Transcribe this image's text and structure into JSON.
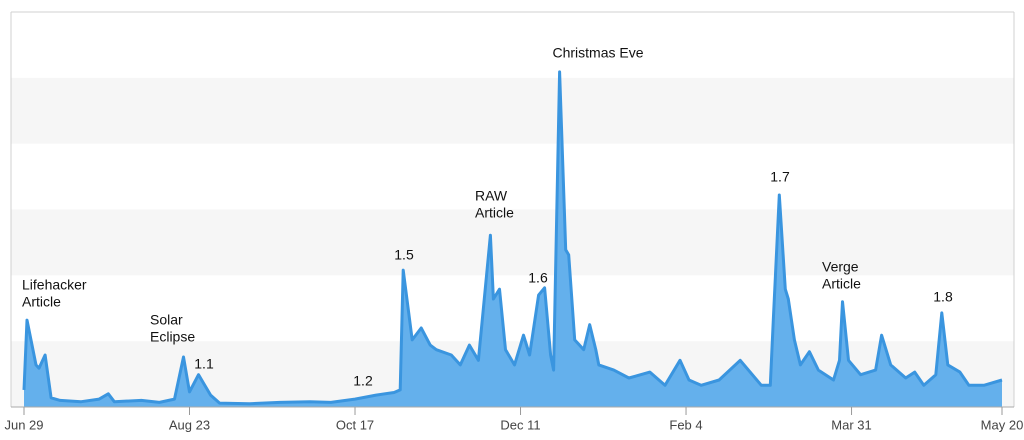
{
  "chart_data": {
    "type": "area",
    "color": "#64b0ec",
    "line_color": "#3a95df",
    "x": [
      0,
      1,
      4,
      5,
      7,
      9,
      12,
      19,
      25,
      28,
      30,
      39,
      45,
      50,
      53,
      55,
      58,
      62,
      65,
      75,
      85,
      95,
      102,
      110,
      117,
      123,
      125,
      126,
      129,
      132,
      135,
      137,
      142,
      145,
      148,
      151,
      155,
      156,
      158,
      160,
      163,
      166,
      168,
      171,
      173,
      175,
      176,
      178,
      180,
      181,
      183,
      186,
      188,
      190,
      191,
      196,
      201,
      208,
      213,
      218,
      221,
      225,
      231,
      238,
      245,
      248,
      249,
      251,
      253,
      254,
      256,
      258,
      261,
      264,
      269,
      271,
      272,
      274,
      278,
      283,
      285,
      288,
      293,
      296,
      299,
      303,
      305,
      307,
      311,
      314,
      319,
      325
    ],
    "values": [
      0.26,
      1.32,
      0.64,
      0.59,
      0.79,
      0.14,
      0.1,
      0.08,
      0.12,
      0.2,
      0.08,
      0.1,
      0.07,
      0.12,
      0.76,
      0.23,
      0.49,
      0.18,
      0.06,
      0.05,
      0.07,
      0.08,
      0.07,
      0.12,
      0.18,
      0.22,
      0.26,
      2.08,
      1.02,
      1.2,
      0.94,
      0.87,
      0.79,
      0.64,
      0.94,
      0.71,
      2.61,
      1.64,
      1.79,
      0.87,
      0.64,
      1.09,
      0.79,
      1.7,
      1.81,
      0.79,
      0.56,
      5.09,
      2.39,
      2.31,
      1.02,
      0.87,
      1.25,
      0.87,
      0.64,
      0.56,
      0.44,
      0.53,
      0.33,
      0.71,
      0.41,
      0.33,
      0.41,
      0.71,
      0.33,
      0.33,
      1.32,
      3.22,
      1.79,
      1.64,
      1.02,
      0.64,
      0.84,
      0.56,
      0.41,
      0.71,
      1.6,
      0.71,
      0.49,
      0.56,
      1.09,
      0.64,
      0.44,
      0.53,
      0.33,
      0.49,
      1.43,
      0.64,
      0.53,
      0.33,
      0.33,
      0.41
    ],
    "xlim": [
      0,
      325
    ],
    "xticks": [
      {
        "value": 0,
        "label": "Jun 29"
      },
      {
        "value": 55,
        "label": "Aug 23"
      },
      {
        "value": 110,
        "label": "Oct 17"
      },
      {
        "value": 165,
        "label": "Dec 11"
      },
      {
        "value": 220,
        "label": "Feb 4"
      },
      {
        "value": 275,
        "label": "Mar 31"
      },
      {
        "value": 325,
        "label": "May 20"
      }
    ],
    "ylim": [
      0,
      6
    ],
    "yticks": [
      0,
      1,
      2,
      3,
      4,
      5,
      6
    ],
    "grid": "bands",
    "annotations": [
      [
        "Lifehacker",
        "Article"
      ],
      [
        "Solar",
        "Eclipse"
      ],
      [
        "1.1"
      ],
      [
        "1.2"
      ],
      [
        "1.5"
      ],
      [
        "RAW",
        "Article"
      ],
      [
        "1.6"
      ],
      [
        "Christmas Eve"
      ],
      [
        "1.7"
      ],
      [
        "Verge",
        "Article"
      ],
      [
        "1.8"
      ]
    ]
  }
}
